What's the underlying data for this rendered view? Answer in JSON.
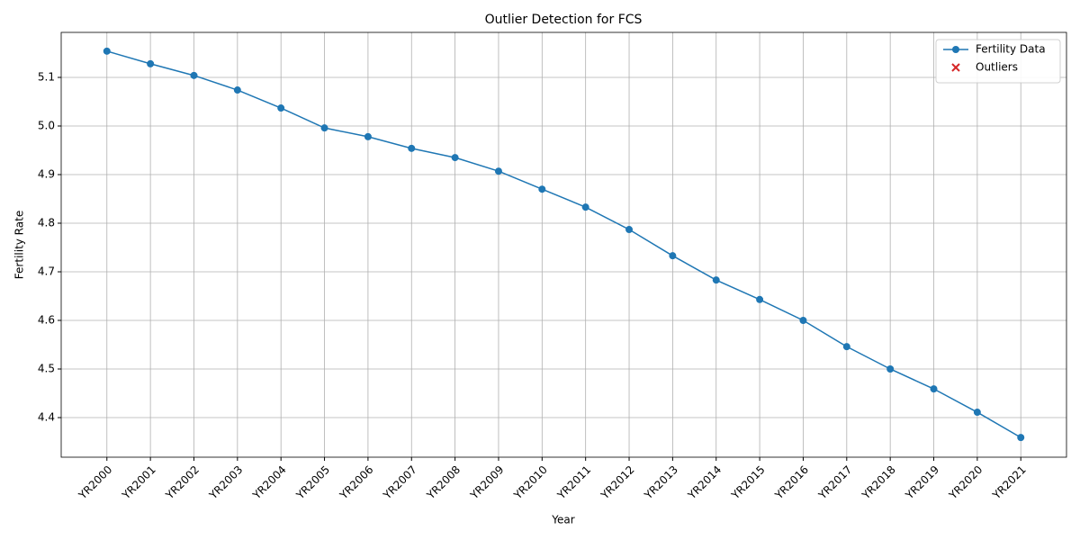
{
  "chart_data": {
    "type": "line",
    "title": "Outlier Detection for FCS",
    "x_label": "Year",
    "y_label": "Fertility Rate",
    "categories": [
      "YR2000",
      "YR2001",
      "YR2002",
      "YR2003",
      "YR2004",
      "YR2005",
      "YR2006",
      "YR2007",
      "YR2008",
      "YR2009",
      "YR2010",
      "YR2011",
      "YR2012",
      "YR2013",
      "YR2014",
      "YR2015",
      "YR2016",
      "YR2017",
      "YR2018",
      "YR2019",
      "YR2020",
      "YR2021"
    ],
    "series": [
      {
        "name": "Fertility Data",
        "color": "#1f77b4",
        "values": [
          5.154,
          5.128,
          5.104,
          5.074,
          5.037,
          4.996,
          4.978,
          4.954,
          4.935,
          4.907,
          4.87,
          4.833,
          4.787,
          4.733,
          4.683,
          4.643,
          4.6,
          4.546,
          4.5,
          4.459,
          4.411,
          4.359
        ]
      }
    ],
    "outliers": {
      "name": "Outliers",
      "color": "#d62728",
      "marker": "x",
      "values": []
    },
    "ylim": [
      4.3185,
      5.1926
    ],
    "yticks": [
      4.4,
      4.5,
      4.6,
      4.7,
      4.8,
      4.9,
      5.0,
      5.1
    ],
    "grid": true,
    "legend": "upper right"
  }
}
